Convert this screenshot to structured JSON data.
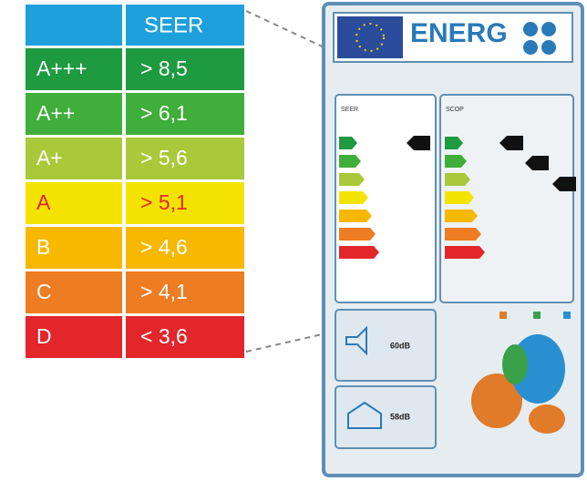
{
  "table": {
    "header": {
      "title": "SEER"
    },
    "rows": [
      [
        "A+++",
        "> 8,5"
      ],
      [
        "A++",
        "> 6,1"
      ],
      [
        "A+",
        "> 5,6"
      ],
      [
        "A",
        "> 5,1"
      ],
      [
        "B",
        "> 4,6"
      ],
      [
        "C",
        "> 4,1"
      ],
      [
        "D",
        "< 3,6"
      ]
    ]
  },
  "label": {
    "title": "ENERG",
    "left_panel": "SEER",
    "right_panel": "SCOP",
    "indoor_sound": "60dB",
    "outdoor_sound": "58dB"
  }
}
